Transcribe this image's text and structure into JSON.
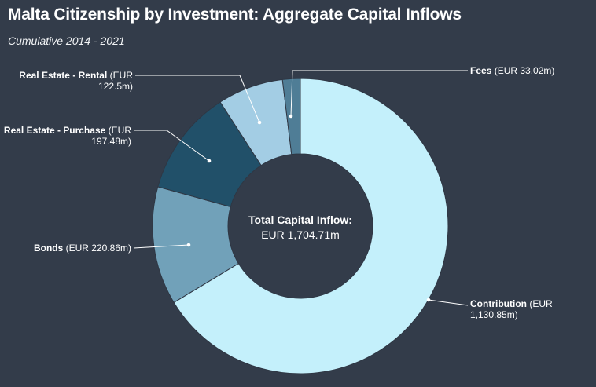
{
  "title": "Malta Citizenship by Investment: Aggregate Capital Inflows",
  "subtitle": "Cumulative 2014 - 2021",
  "chart_data": {
    "type": "pie",
    "donut": true,
    "title": "Malta Citizenship by Investment: Aggregate Capital Inflows",
    "subtitle": "Cumulative 2014 - 2021",
    "center_label": "Total Capital Inflow:",
    "center_value": "EUR 1,704.71m",
    "slices": [
      {
        "label": "Contribution",
        "value": 1130.85,
        "value_text": "(EUR 1,130.85m)",
        "color": "#c4f0fb"
      },
      {
        "label": "Bonds",
        "value": 220.86,
        "value_text": "(EUR 220.86m)",
        "color": "#71a1b9"
      },
      {
        "label": "Real Estate - Purchase",
        "value": 197.48,
        "value_text": "(EUR 197.48m)",
        "color": "#215069"
      },
      {
        "label": "Real Estate - Rental",
        "value": 122.5,
        "value_text": "(EUR 122.5m)",
        "color": "#a3cde4"
      },
      {
        "label": "Fees",
        "value": 33.02,
        "value_text": "(EUR 33.02m)",
        "color": "#4f7d96"
      }
    ]
  }
}
